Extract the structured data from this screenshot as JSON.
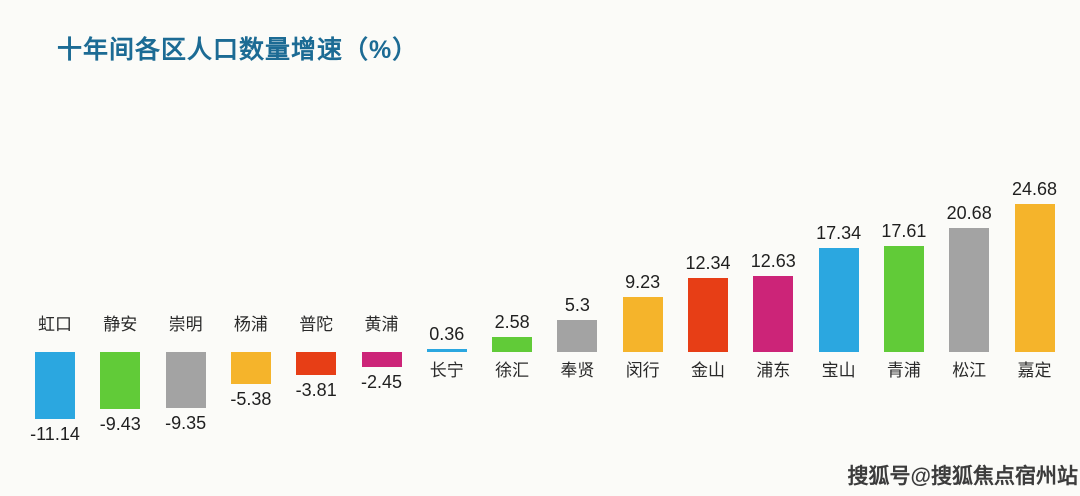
{
  "page": {
    "background": "#fbfbf8",
    "watermark": "搜狐号@搜狐焦点宿州站"
  },
  "chart_data": {
    "type": "bar",
    "title": "十年间各区人口数量增速（%）",
    "title_color": "#1c6b94",
    "xlabel": "",
    "ylabel": "",
    "categories": [
      "虹口",
      "静安",
      "崇明",
      "杨浦",
      "普陀",
      "黄浦",
      "长宁",
      "徐汇",
      "奉贤",
      "闵行",
      "金山",
      "浦东",
      "宝山",
      "青浦",
      "松江",
      "嘉定"
    ],
    "values": [
      -11.14,
      -9.43,
      -9.35,
      -5.38,
      -3.81,
      -2.45,
      0.36,
      2.58,
      5.3,
      9.23,
      12.34,
      12.63,
      17.34,
      17.61,
      20.68,
      24.68
    ],
    "value_labels": [
      "-11.14",
      "-9.43",
      "-9.35",
      "-5.38",
      "-3.81",
      "-2.45",
      "0.36",
      "2.58",
      "5.3",
      "9.23",
      "12.34",
      "12.63",
      "17.34",
      "17.61",
      "20.68",
      "24.68"
    ],
    "bar_colors": [
      "#2ba7e0",
      "#61cb38",
      "#a3a3a3",
      "#f5b42b",
      "#e73e16",
      "#cc2478",
      "#2ba7e0",
      "#61cb38",
      "#a3a3a3",
      "#f5b42b",
      "#e73e16",
      "#cc2478",
      "#2ba7e0",
      "#61cb38",
      "#a3a3a3",
      "#f5b42b"
    ],
    "ylim": [
      -13,
      27
    ],
    "grid": false,
    "legend": false,
    "label_color": "#1f1f1f",
    "bar_label_position": "outside-end"
  }
}
